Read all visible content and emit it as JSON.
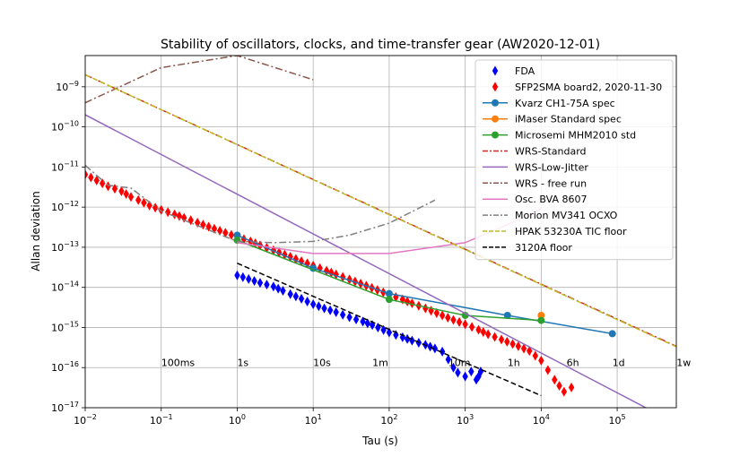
{
  "chart_data": {
    "type": "scatter",
    "title": "Stability of oscillators, clocks, and time-transfer gear (AW2020-12-01)",
    "xlabel": "Tau (s)",
    "ylabel": "Allan deviation",
    "xscale": "log",
    "yscale": "log",
    "xlim": [
      0.01,
      600000
    ],
    "ylim": [
      1e-17,
      6e-09
    ],
    "grid": true,
    "legend_position": "top-right",
    "x_ticks": [
      {
        "value": 0.01,
        "base": "10",
        "exp": "−2"
      },
      {
        "value": 0.1,
        "base": "10",
        "exp": "−1"
      },
      {
        "value": 1,
        "base": "10",
        "exp": "0"
      },
      {
        "value": 10,
        "base": "10",
        "exp": "1"
      },
      {
        "value": 100,
        "base": "10",
        "exp": "2"
      },
      {
        "value": 1000,
        "base": "10",
        "exp": "3"
      },
      {
        "value": 10000,
        "base": "10",
        "exp": "4"
      },
      {
        "value": 100000,
        "base": "10",
        "exp": "5"
      }
    ],
    "y_ticks": [
      {
        "value": 1e-17,
        "base": "10",
        "exp": "−17"
      },
      {
        "value": 1e-16,
        "base": "10",
        "exp": "−16"
      },
      {
        "value": 1e-15,
        "base": "10",
        "exp": "−15"
      },
      {
        "value": 1e-14,
        "base": "10",
        "exp": "−14"
      },
      {
        "value": 1e-13,
        "base": "10",
        "exp": "−13"
      },
      {
        "value": 1e-12,
        "base": "10",
        "exp": "−12"
      },
      {
        "value": 1e-11,
        "base": "10",
        "exp": "−11"
      },
      {
        "value": 1e-10,
        "base": "10",
        "exp": "−10"
      },
      {
        "value": 1e-09,
        "base": "10",
        "exp": "−9"
      }
    ],
    "annotations": [
      {
        "text": "100ms",
        "x": 0.1,
        "y": 1.1e-16
      },
      {
        "text": "1s",
        "x": 1,
        "y": 1.1e-16
      },
      {
        "text": "10s",
        "x": 10,
        "y": 1.1e-16
      },
      {
        "text": "1m",
        "x": 60,
        "y": 1.1e-16
      },
      {
        "text": "10m",
        "x": 600,
        "y": 1.1e-16
      },
      {
        "text": "1h",
        "x": 3600,
        "y": 1.1e-16
      },
      {
        "text": "6h",
        "x": 21600,
        "y": 1.1e-16
      },
      {
        "text": "1d",
        "x": 86400,
        "y": 1.1e-16
      },
      {
        "text": "1w",
        "x": 604800,
        "y": 1.1e-16
      }
    ],
    "series": [
      {
        "name": "FDA",
        "kind": "diamond",
        "color": "#0000ff",
        "x": [
          1,
          2,
          3,
          4,
          5,
          7,
          10,
          14,
          20,
          30,
          45,
          60,
          100,
          150,
          200,
          300,
          400,
          500,
          600,
          700,
          800,
          1000,
          1200,
          1400,
          1500,
          1600
        ],
        "y": [
          2e-14,
          1.3e-14,
          1.05e-14,
          8.2e-15,
          6.8e-15,
          5.2e-15,
          3.8e-15,
          3e-15,
          2.4e-15,
          1.8e-15,
          1.4e-15,
          1.15e-15,
          7.5e-16,
          5.7e-16,
          4.7e-16,
          3.7e-16,
          3e-16,
          2.5e-16,
          1.6e-16,
          1e-16,
          7.5e-17,
          6e-17,
          8e-17,
          5e-17,
          6e-17,
          8e-17
        ]
      },
      {
        "name": "SFP2SMA board2, 2020-11-30",
        "kind": "diamond",
        "color": "#ff0000",
        "x": [
          0.01,
          0.02,
          0.03,
          0.04,
          0.05,
          0.07,
          0.1,
          0.15,
          0.2,
          0.3,
          0.5,
          0.7,
          1,
          1.5,
          2,
          3,
          5,
          7,
          10,
          15,
          20,
          30,
          50,
          70,
          100,
          150,
          200,
          300,
          500,
          700,
          1000,
          1500,
          2000,
          3000,
          5000,
          7000,
          10000,
          15000,
          20000,
          25000
        ],
        "y": [
          6.5e-12,
          3.3e-12,
          2.5e-12,
          1.8e-12,
          1.5e-12,
          1.1e-12,
          8.5e-13,
          6.6e-13,
          5.4e-13,
          4.1e-13,
          2.9e-13,
          2.3e-13,
          1.8e-13,
          1.4e-13,
          1.12e-13,
          8.4e-14,
          5.8e-14,
          4.5e-14,
          3.5e-14,
          2.6e-14,
          2.1e-14,
          1.58e-14,
          1.1e-14,
          8.6e-15,
          6.6e-15,
          5e-15,
          4e-15,
          3e-15,
          2e-15,
          1.55e-15,
          1.2e-15,
          8.8e-16,
          6.8e-16,
          5e-16,
          3.4e-16,
          2.6e-16,
          1.5e-16,
          5e-17,
          2.5e-17,
          3.2e-17
        ]
      },
      {
        "name": "Kvarz CH1-75A spec",
        "kind": "line-marker",
        "color": "#1f77b4",
        "x": [
          1,
          10,
          100,
          3600,
          86400
        ],
        "y": [
          2e-13,
          3e-14,
          7e-15,
          2e-15,
          7e-16
        ]
      },
      {
        "name": "iMaser Standard spec",
        "kind": "line-marker",
        "color": "#ff7f0e",
        "x": [
          10000
        ],
        "y": [
          2e-15
        ]
      },
      {
        "name": "Microsemi MHM2010 std",
        "kind": "line-marker",
        "color": "#2ca02c",
        "x": [
          1,
          100,
          1000,
          10000
        ],
        "y": [
          1.5e-13,
          5e-15,
          2e-15,
          1.5e-15
        ]
      },
      {
        "name": "WRS-Standard",
        "kind": "dashdot",
        "color": "#d62728",
        "x": [
          0.01,
          600000
        ],
        "y": [
          2e-09,
          3.4e-16
        ]
      },
      {
        "name": "WRS-Low-Jitter",
        "kind": "line",
        "color": "#9467bd",
        "x": [
          0.01,
          600000
        ],
        "y": [
          2e-10,
          4e-18
        ]
      },
      {
        "name": "WRS - free run",
        "kind": "dashdot",
        "color": "#8c564b",
        "x": [
          0.01,
          0.1,
          1,
          10
        ],
        "y": [
          4e-10,
          3e-09,
          6e-09,
          1.5e-09
        ]
      },
      {
        "name": "Osc. BVA 8607",
        "kind": "line",
        "color": "#e377c2",
        "x": [
          1,
          10,
          100,
          1000,
          4000,
          10000
        ],
        "y": [
          1.3e-13,
          7e-14,
          7e-14,
          1.3e-13,
          4e-13,
          9e-13
        ]
      },
      {
        "name": "Morion MV341 OCXO",
        "kind": "dashdot",
        "color": "#7f7f7f",
        "x": [
          0.01,
          0.02,
          0.04,
          0.1,
          1,
          3,
          10,
          30,
          100,
          400
        ],
        "y": [
          1.1e-11,
          3.5e-12,
          3e-12,
          8e-13,
          1.4e-13,
          1.3e-13,
          1.4e-13,
          2e-13,
          4e-13,
          1.5e-12
        ]
      },
      {
        "name": "HPAK 53230A TIC floor",
        "kind": "dashed",
        "color": "#bcbd22",
        "x": [
          0.01,
          600000
        ],
        "y": [
          2e-09,
          3.3e-16
        ]
      },
      {
        "name": "3120A floor",
        "kind": "dashed",
        "color": "#000000",
        "x": [
          1,
          10000
        ],
        "y": [
          4e-14,
          2e-17
        ]
      }
    ]
  }
}
